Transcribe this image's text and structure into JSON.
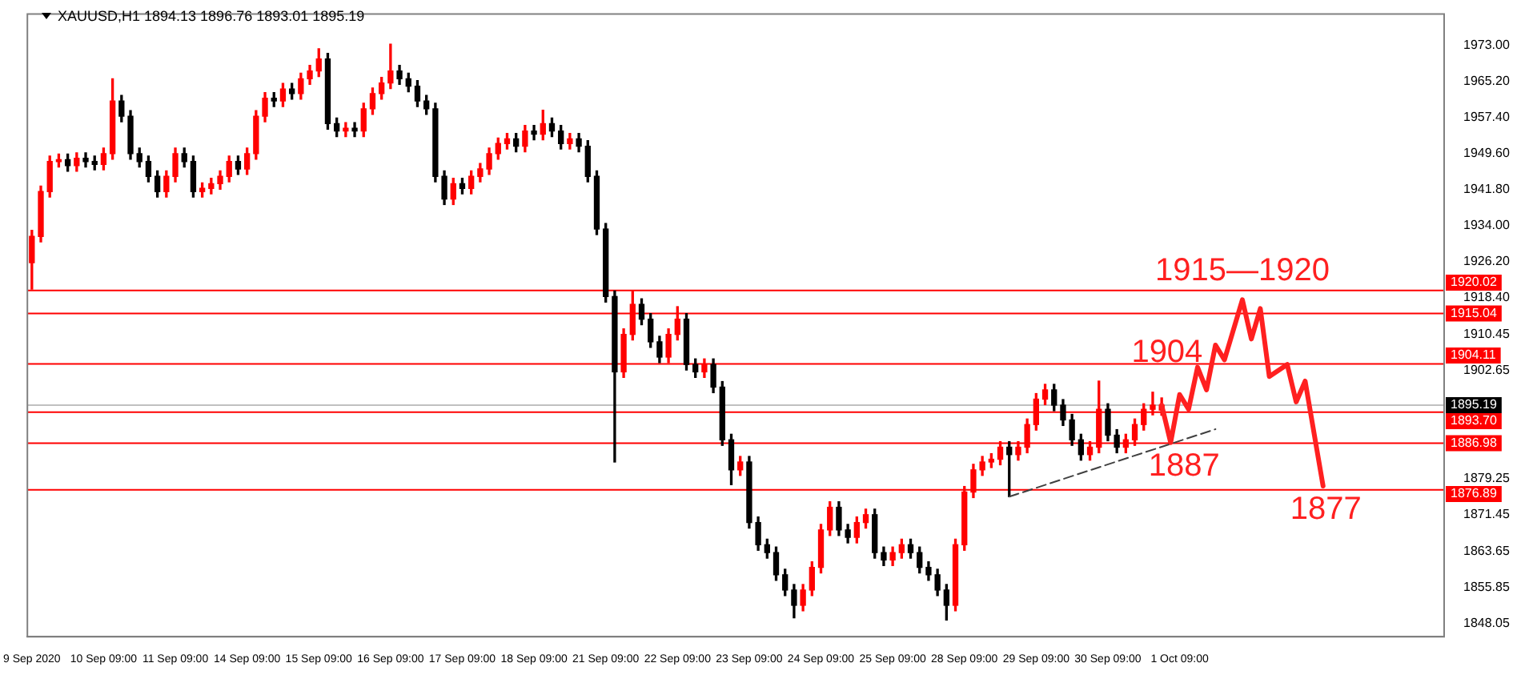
{
  "chart_data": {
    "type": "candlestick",
    "title": "XAUUSD,H1  1894.13 1896.76 1893.01 1895.19",
    "categories": [
      "9 Sep 2020",
      null,
      null,
      null,
      null,
      null,
      null,
      null,
      "10 Sep 09:00",
      null,
      null,
      null,
      null,
      null,
      null,
      null,
      "11 Sep 09:00",
      null,
      null,
      null,
      null,
      null,
      null,
      null,
      "14 Sep 09:00",
      null,
      null,
      null,
      null,
      null,
      null,
      null,
      "15 Sep 09:00",
      null,
      null,
      null,
      null,
      null,
      null,
      null,
      "16 Sep 09:00",
      null,
      null,
      null,
      null,
      null,
      null,
      null,
      "17 Sep 09:00",
      null,
      null,
      null,
      null,
      null,
      null,
      null,
      "18 Sep 09:00",
      null,
      null,
      null,
      null,
      null,
      null,
      null,
      "21 Sep 09:00",
      null,
      null,
      null,
      null,
      null,
      null,
      null,
      "22 Sep 09:00",
      null,
      null,
      null,
      null,
      null,
      null,
      null,
      "23 Sep 09:00",
      null,
      null,
      null,
      null,
      null,
      null,
      null,
      "24 Sep 09:00",
      null,
      null,
      null,
      null,
      null,
      null,
      null,
      "25 Sep 09:00",
      null,
      null,
      null,
      null,
      null,
      null,
      null,
      "28 Sep 09:00",
      null,
      null,
      null,
      null,
      null,
      null,
      null,
      "29 Sep 09:00",
      null,
      null,
      null,
      null,
      null,
      null,
      null,
      "30 Sep 09:00",
      null,
      null,
      null,
      null,
      null,
      null,
      null,
      "1 Oct 09:00",
      null,
      null,
      null,
      null,
      null,
      null,
      null,
      null,
      null,
      null,
      null,
      null,
      null,
      null,
      null,
      null,
      null,
      null,
      null,
      null,
      null,
      null,
      null,
      null,
      null,
      null,
      null,
      null,
      null
    ],
    "ohlc": [
      [
        1926.0,
        1933.0,
        1920.3,
        1931.7
      ],
      [
        1931.7,
        1942.6,
        1930.5,
        1941.4
      ],
      [
        1941.4,
        1949.1,
        1940.2,
        1947.9
      ],
      [
        1947.9,
        1949.5,
        1946.7,
        1948.3
      ],
      [
        1948.3,
        1949.5,
        1945.8,
        1947.0
      ],
      [
        1947.0,
        1949.8,
        1945.8,
        1948.6
      ],
      [
        1948.6,
        1949.8,
        1946.7,
        1947.9
      ],
      [
        1947.9,
        1949.1,
        1946.1,
        1947.3
      ],
      [
        1947.3,
        1950.8,
        1946.1,
        1949.6
      ],
      [
        1949.6,
        1965.8,
        1948.4,
        1961.0
      ],
      [
        1961.0,
        1962.2,
        1956.5,
        1957.7
      ],
      [
        1957.7,
        1958.9,
        1948.4,
        1949.6
      ],
      [
        1949.6,
        1950.8,
        1946.7,
        1947.9
      ],
      [
        1947.9,
        1949.1,
        1943.5,
        1944.7
      ],
      [
        1944.7,
        1945.9,
        1940.2,
        1941.4
      ],
      [
        1941.4,
        1945.9,
        1940.2,
        1944.7
      ],
      [
        1944.7,
        1950.8,
        1943.5,
        1949.6
      ],
      [
        1949.6,
        1950.8,
        1946.7,
        1947.9
      ],
      [
        1947.9,
        1949.1,
        1940.2,
        1941.4
      ],
      [
        1941.4,
        1943.3,
        1940.2,
        1942.1
      ],
      [
        1942.1,
        1944.3,
        1940.9,
        1943.1
      ],
      [
        1943.1,
        1945.9,
        1941.9,
        1944.7
      ],
      [
        1944.7,
        1949.1,
        1943.5,
        1947.9
      ],
      [
        1947.9,
        1949.1,
        1945.1,
        1946.3
      ],
      [
        1946.3,
        1950.8,
        1945.1,
        1949.6
      ],
      [
        1949.6,
        1958.9,
        1948.4,
        1957.7
      ],
      [
        1957.7,
        1962.8,
        1956.5,
        1961.6
      ],
      [
        1961.6,
        1962.8,
        1959.8,
        1961.0
      ],
      [
        1961.0,
        1964.8,
        1959.8,
        1963.6
      ],
      [
        1963.6,
        1964.8,
        1961.4,
        1962.6
      ],
      [
        1962.6,
        1967.0,
        1961.4,
        1965.8
      ],
      [
        1965.8,
        1968.7,
        1964.6,
        1967.5
      ],
      [
        1967.5,
        1972.3,
        1966.3,
        1970.1
      ],
      [
        1970.1,
        1971.3,
        1954.9,
        1956.1
      ],
      [
        1956.1,
        1957.3,
        1953.3,
        1954.5
      ],
      [
        1954.5,
        1956.3,
        1953.3,
        1955.1
      ],
      [
        1955.1,
        1956.3,
        1953.3,
        1954.5
      ],
      [
        1954.5,
        1960.5,
        1953.3,
        1959.3
      ],
      [
        1959.3,
        1963.8,
        1958.1,
        1962.6
      ],
      [
        1962.6,
        1966.1,
        1961.4,
        1964.9
      ],
      [
        1964.9,
        1973.3,
        1963.7,
        1967.5
      ],
      [
        1967.5,
        1968.7,
        1964.6,
        1965.8
      ],
      [
        1965.8,
        1967.0,
        1963.0,
        1964.2
      ],
      [
        1964.2,
        1965.4,
        1959.8,
        1961.0
      ],
      [
        1961.0,
        1962.2,
        1958.1,
        1959.3
      ],
      [
        1959.3,
        1960.5,
        1943.5,
        1944.7
      ],
      [
        1944.7,
        1945.9,
        1938.6,
        1939.8
      ],
      [
        1939.8,
        1944.3,
        1938.6,
        1943.1
      ],
      [
        1943.1,
        1944.3,
        1940.9,
        1942.1
      ],
      [
        1942.1,
        1945.9,
        1940.9,
        1944.7
      ],
      [
        1944.7,
        1947.5,
        1943.5,
        1946.3
      ],
      [
        1946.3,
        1950.8,
        1945.1,
        1949.6
      ],
      [
        1949.6,
        1953.0,
        1948.4,
        1951.8
      ],
      [
        1951.8,
        1954.0,
        1950.6,
        1952.8
      ],
      [
        1952.8,
        1954.0,
        1950.0,
        1951.2
      ],
      [
        1951.2,
        1955.7,
        1950.0,
        1954.5
      ],
      [
        1954.5,
        1955.7,
        1952.6,
        1953.8
      ],
      [
        1953.8,
        1959.0,
        1952.6,
        1956.1
      ],
      [
        1956.1,
        1957.3,
        1953.3,
        1954.5
      ],
      [
        1954.5,
        1955.7,
        1950.6,
        1951.8
      ],
      [
        1951.8,
        1954.0,
        1950.6,
        1952.8
      ],
      [
        1952.8,
        1954.0,
        1950.0,
        1951.2
      ],
      [
        1951.2,
        1952.4,
        1943.5,
        1944.7
      ],
      [
        1944.7,
        1945.9,
        1932.1,
        1933.3
      ],
      [
        1933.3,
        1934.5,
        1917.5,
        1918.7
      ],
      [
        1918.7,
        1919.9,
        1882.9,
        1902.4
      ],
      [
        1902.4,
        1911.7,
        1901.2,
        1910.5
      ],
      [
        1910.5,
        1919.8,
        1909.3,
        1917.0
      ],
      [
        1917.0,
        1918.2,
        1912.6,
        1913.8
      ],
      [
        1913.8,
        1915.0,
        1907.7,
        1908.9
      ],
      [
        1908.9,
        1910.1,
        1904.4,
        1905.6
      ],
      [
        1905.6,
        1911.7,
        1904.4,
        1910.5
      ],
      [
        1910.5,
        1916.5,
        1909.3,
        1913.8
      ],
      [
        1913.8,
        1915.0,
        1902.8,
        1904.0
      ],
      [
        1904.0,
        1905.2,
        1901.2,
        1902.4
      ],
      [
        1902.4,
        1905.2,
        1901.2,
        1904.0
      ],
      [
        1904.0,
        1905.2,
        1897.9,
        1899.1
      ],
      [
        1899.1,
        1900.3,
        1886.5,
        1887.7
      ],
      [
        1887.7,
        1888.9,
        1878.0,
        1881.2
      ],
      [
        1881.2,
        1884.1,
        1880.0,
        1882.9
      ],
      [
        1882.9,
        1884.1,
        1868.6,
        1869.8
      ],
      [
        1869.8,
        1871.0,
        1863.8,
        1865.0
      ],
      [
        1865.0,
        1866.2,
        1862.1,
        1863.3
      ],
      [
        1863.3,
        1864.5,
        1857.3,
        1858.5
      ],
      [
        1858.5,
        1859.7,
        1854.0,
        1855.2
      ],
      [
        1855.2,
        1856.4,
        1849.2,
        1851.9
      ],
      [
        1851.9,
        1856.4,
        1850.7,
        1855.2
      ],
      [
        1855.2,
        1861.3,
        1854.0,
        1860.1
      ],
      [
        1860.1,
        1869.4,
        1858.9,
        1868.2
      ],
      [
        1868.2,
        1874.3,
        1867.0,
        1873.1
      ],
      [
        1873.1,
        1874.3,
        1867.0,
        1868.2
      ],
      [
        1868.2,
        1869.4,
        1865.4,
        1866.6
      ],
      [
        1866.6,
        1871.0,
        1865.4,
        1869.8
      ],
      [
        1869.8,
        1872.7,
        1868.6,
        1871.5
      ],
      [
        1871.5,
        1872.7,
        1862.1,
        1863.3
      ],
      [
        1863.3,
        1864.5,
        1860.5,
        1861.7
      ],
      [
        1861.7,
        1864.5,
        1860.5,
        1863.3
      ],
      [
        1863.3,
        1866.2,
        1862.1,
        1865.0
      ],
      [
        1865.0,
        1866.2,
        1862.1,
        1863.3
      ],
      [
        1863.3,
        1864.5,
        1858.9,
        1860.1
      ],
      [
        1860.1,
        1861.3,
        1857.3,
        1858.5
      ],
      [
        1858.5,
        1859.7,
        1854.0,
        1855.2
      ],
      [
        1855.2,
        1856.4,
        1848.7,
        1851.9
      ],
      [
        1851.9,
        1866.2,
        1850.7,
        1865.0
      ],
      [
        1865.0,
        1877.6,
        1863.8,
        1876.4
      ],
      [
        1876.4,
        1882.4,
        1875.2,
        1881.2
      ],
      [
        1881.2,
        1884.1,
        1880.0,
        1882.9
      ],
      [
        1882.9,
        1884.7,
        1881.7,
        1883.5
      ],
      [
        1883.5,
        1887.3,
        1882.3,
        1886.1
      ],
      [
        1886.1,
        1887.3,
        1875.4,
        1884.5
      ],
      [
        1884.5,
        1887.3,
        1883.3,
        1886.1
      ],
      [
        1886.1,
        1892.2,
        1884.9,
        1891.0
      ],
      [
        1891.0,
        1897.7,
        1889.8,
        1896.5
      ],
      [
        1896.5,
        1899.7,
        1895.3,
        1898.5
      ],
      [
        1898.5,
        1899.7,
        1894.0,
        1895.2
      ],
      [
        1895.2,
        1896.4,
        1890.8,
        1892.0
      ],
      [
        1892.0,
        1893.2,
        1886.5,
        1887.7
      ],
      [
        1887.7,
        1888.9,
        1883.3,
        1884.5
      ],
      [
        1884.5,
        1887.3,
        1883.3,
        1886.1
      ],
      [
        1886.1,
        1900.4,
        1884.9,
        1894.3
      ],
      [
        1894.3,
        1895.5,
        1887.5,
        1888.7
      ],
      [
        1888.7,
        1889.9,
        1884.9,
        1886.1
      ],
      [
        1886.1,
        1888.9,
        1884.9,
        1887.7
      ],
      [
        1887.7,
        1892.2,
        1886.5,
        1891.0
      ],
      [
        1891.0,
        1895.5,
        1889.8,
        1894.3
      ],
      [
        1894.3,
        1898.0,
        1893.1,
        1895.2
      ],
      [
        1894.13,
        1896.76,
        1893.01,
        1895.19
      ],
      null,
      null,
      null,
      null,
      null,
      null,
      null,
      null,
      null,
      null,
      null,
      null,
      null,
      null,
      null,
      null,
      null,
      null,
      null,
      null,
      null,
      null,
      null,
      null,
      null,
      null,
      null,
      null,
      null,
      null,
      null
    ],
    "colors": [
      "#ff0000",
      "#ff0000",
      "#ff0000",
      "#ff0000",
      "#000000",
      "#ff0000",
      "#000000",
      "#000000",
      "#ff0000",
      "#ff0000",
      "#000000",
      "#000000",
      "#000000",
      "#000000",
      "#000000",
      "#ff0000",
      "#ff0000",
      "#000000",
      "#000000",
      "#ff0000",
      "#ff0000",
      "#ff0000",
      "#ff0000",
      "#000000",
      "#ff0000",
      "#ff0000",
      "#ff0000",
      "#000000",
      "#ff0000",
      "#000000",
      "#ff0000",
      "#ff0000",
      "#ff0000",
      "#000000",
      "#000000",
      "#ff0000",
      "#000000",
      "#ff0000",
      "#ff0000",
      "#ff0000",
      "#ff0000",
      "#000000",
      "#000000",
      "#000000",
      "#000000",
      "#000000",
      "#000000",
      "#ff0000",
      "#000000",
      "#ff0000",
      "#ff0000",
      "#ff0000",
      "#ff0000",
      "#ff0000",
      "#000000",
      "#ff0000",
      "#000000",
      "#ff0000",
      "#000000",
      "#000000",
      "#ff0000",
      "#000000",
      "#000000",
      "#000000",
      "#000000",
      "#000000",
      "#ff0000",
      "#ff0000",
      "#000000",
      "#000000",
      "#000000",
      "#ff0000",
      "#ff0000",
      "#000000",
      "#000000",
      "#ff0000",
      "#000000",
      "#000000",
      "#000000",
      "#ff0000",
      "#000000",
      "#000000",
      "#000000",
      "#000000",
      "#000000",
      "#000000",
      "#ff0000",
      "#ff0000",
      "#ff0000",
      "#ff0000",
      "#000000",
      "#000000",
      "#ff0000",
      "#ff0000",
      "#000000",
      "#000000",
      "#ff0000",
      "#ff0000",
      "#000000",
      "#000000",
      "#000000",
      "#000000",
      "#000000",
      "#ff0000",
      "#ff0000",
      "#ff0000",
      "#ff0000",
      "#ff0000",
      "#ff0000",
      "#000000",
      "#ff0000",
      "#ff0000",
      "#ff0000",
      "#ff0000",
      "#000000",
      "#000000",
      "#000000",
      "#000000",
      "#ff0000",
      "#ff0000",
      "#000000",
      "#000000",
      "#ff0000",
      "#ff0000",
      "#ff0000",
      "#ff0000",
      "#ff0000",
      null,
      null,
      null,
      null,
      null,
      null,
      null,
      null,
      null,
      null,
      null,
      null,
      null,
      null,
      null,
      null,
      null,
      null,
      null,
      null,
      null,
      null,
      null,
      null,
      null,
      null,
      null,
      null,
      null,
      null,
      null
    ],
    "series": [
      {
        "type": "line",
        "color": "#ff2020",
        "line_style": "solid",
        "values": [
          null,
          null,
          null,
          null,
          null,
          null,
          null,
          null,
          null,
          null,
          null,
          null,
          null,
          null,
          null,
          null,
          null,
          null,
          null,
          null,
          null,
          null,
          null,
          null,
          null,
          null,
          null,
          null,
          null,
          null,
          null,
          null,
          null,
          null,
          null,
          null,
          null,
          null,
          null,
          null,
          null,
          null,
          null,
          null,
          null,
          null,
          null,
          null,
          null,
          null,
          null,
          null,
          null,
          null,
          null,
          null,
          null,
          null,
          null,
          null,
          null,
          null,
          null,
          null,
          null,
          null,
          null,
          null,
          null,
          null,
          null,
          null,
          null,
          null,
          null,
          null,
          null,
          null,
          null,
          null,
          null,
          null,
          null,
          null,
          null,
          null,
          null,
          null,
          null,
          null,
          null,
          null,
          null,
          null,
          null,
          null,
          null,
          null,
          null,
          null,
          null,
          null,
          null,
          null,
          null,
          null,
          null,
          null,
          null,
          null,
          null,
          null,
          null,
          null,
          null,
          null,
          null,
          null,
          null,
          null,
          null,
          null,
          null,
          null,
          null,
          null,
          1895.2,
          1887.1,
          1897.5,
          1894.3,
          1903.4,
          1898.5,
          1908.2,
          1905.0,
          null,
          1918.0,
          1909.5,
          1916.1,
          1901.4,
          null,
          1904.0,
          1895.9,
          1900.4,
          null,
          1877.7,
          null,
          null,
          null,
          null,
          null,
          null,
          null,
          null,
          null,
          null,
          null,
          null,
          null
        ]
      },
      {
        "type": "line",
        "color": "#404040",
        "line_style": "dashed",
        "values": [
          null,
          null,
          null,
          null,
          null,
          null,
          null,
          null,
          null,
          null,
          null,
          null,
          null,
          null,
          null,
          null,
          null,
          null,
          null,
          null,
          null,
          null,
          null,
          null,
          null,
          null,
          null,
          null,
          null,
          null,
          null,
          null,
          null,
          null,
          null,
          null,
          null,
          null,
          null,
          null,
          null,
          null,
          null,
          null,
          null,
          null,
          null,
          null,
          null,
          null,
          null,
          null,
          null,
          null,
          null,
          null,
          null,
          null,
          null,
          null,
          null,
          null,
          null,
          null,
          null,
          null,
          null,
          null,
          null,
          null,
          null,
          null,
          null,
          null,
          null,
          null,
          null,
          null,
          null,
          null,
          null,
          null,
          null,
          null,
          null,
          null,
          null,
          null,
          null,
          null,
          null,
          null,
          null,
          null,
          null,
          null,
          null,
          null,
          null,
          null,
          null,
          null,
          null,
          null,
          null,
          null,
          null,
          null,
          null,
          1875.4,
          null,
          null,
          null,
          null,
          null,
          null,
          null,
          null,
          null,
          null,
          null,
          null,
          null,
          null,
          null,
          null,
          null,
          null,
          null,
          null,
          null,
          null,
          1890.0,
          null,
          null,
          null,
          null,
          null,
          null,
          null,
          null,
          null,
          null,
          null,
          null,
          null,
          null,
          null,
          null,
          null,
          null,
          null,
          null,
          null,
          null,
          null,
          null,
          null
        ]
      }
    ],
    "ylim": [
      1845.1,
      1979.8
    ],
    "yticks": [
      {
        "value": 1973,
        "label": "1973.00"
      },
      {
        "value": 1965.2,
        "label": "1965.20"
      },
      {
        "value": 1957.4,
        "label": "1957.40"
      },
      {
        "value": 1949.6,
        "label": "1949.60"
      },
      {
        "value": 1941.8,
        "label": "1941.80"
      },
      {
        "value": 1934,
        "label": "1934.00"
      },
      {
        "value": 1926.2,
        "label": "1926.20"
      },
      {
        "value": 1918.4,
        "label": "1918.40"
      },
      {
        "value": 1910.45,
        "label": "1910.45"
      },
      {
        "value": 1902.65,
        "label": "1902.65"
      },
      {
        "value": 1879.25,
        "label": "1879.25"
      },
      {
        "value": 1871.45,
        "label": "1871.45"
      },
      {
        "value": 1863.65,
        "label": "1863.65"
      },
      {
        "value": 1855.85,
        "label": "1855.85"
      },
      {
        "value": 1848.05,
        "label": "1848.05"
      }
    ],
    "ref_lines": [
      {
        "axis": "y",
        "value": 1920.02,
        "label": "1920.02",
        "color": "#ff0000"
      },
      {
        "axis": "y",
        "value": 1915.04,
        "label": "1915.04",
        "color": "#ff0000"
      },
      {
        "axis": "y",
        "value": 1904.11,
        "label": "1904.11",
        "color": "#ff0000"
      },
      {
        "axis": "y",
        "value": 1895.19,
        "label": "1895.19",
        "color": "#c0c0c0"
      },
      {
        "axis": "y",
        "value": 1893.7,
        "label": "1893.70",
        "color": "#ff0000"
      },
      {
        "axis": "y",
        "value": 1886.98,
        "label": "1886.98",
        "color": "#ff0000"
      },
      {
        "axis": "y",
        "value": 1876.89,
        "label": "1876.89",
        "color": "#ff0000"
      }
    ],
    "annotations": [
      {
        "text": "1915—1920",
        "y": 1920
      },
      {
        "text": "1904",
        "y": 1904
      },
      {
        "text": "1887",
        "y": 1887
      },
      {
        "text": "1877",
        "y": 1877
      }
    ],
    "grid": false,
    "legend": false
  }
}
